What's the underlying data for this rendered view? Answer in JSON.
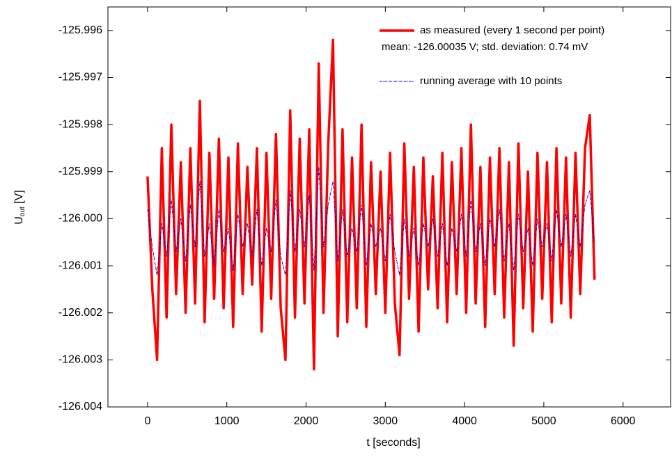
{
  "chart_data": {
    "type": "line",
    "xlabel": "t [seconds]",
    "ylabel": {
      "main": "U",
      "sub": "out",
      "unit": " [V]"
    },
    "annotation": "mean: -126.00035 V; std. deviation: 0.74 mV",
    "xlim": [
      -500,
      6600
    ],
    "ylim": [
      -126.004,
      -125.9955
    ],
    "xticks": [
      0,
      1000,
      2000,
      3000,
      4000,
      5000,
      6000
    ],
    "yticks": [
      -126.004,
      -126.003,
      -126.002,
      -126.001,
      {
        "value": -126.0,
        "label": "-126.000"
      },
      -125.999,
      -125.998,
      -125.997,
      -125.996
    ],
    "x": [
      0,
      60,
      120,
      180,
      240,
      300,
      360,
      420,
      480,
      540,
      600,
      660,
      720,
      780,
      840,
      900,
      960,
      1020,
      1080,
      1140,
      1200,
      1260,
      1320,
      1380,
      1440,
      1500,
      1560,
      1620,
      1680,
      1740,
      1800,
      1860,
      1920,
      1980,
      2040,
      2100,
      2160,
      2220,
      2280,
      2340,
      2400,
      2460,
      2520,
      2580,
      2640,
      2700,
      2760,
      2820,
      2880,
      2940,
      3000,
      3060,
      3120,
      3180,
      3240,
      3300,
      3360,
      3420,
      3480,
      3540,
      3600,
      3660,
      3720,
      3780,
      3840,
      3900,
      3960,
      4020,
      4080,
      4140,
      4200,
      4260,
      4320,
      4380,
      4440,
      4500,
      4560,
      4620,
      4680,
      4740,
      4800,
      4860,
      4920,
      4980,
      5040,
      5100,
      5160,
      5220,
      5280,
      5340,
      5400,
      5460,
      5520,
      5580,
      5640
    ],
    "series": [
      {
        "name": "as measured (every 1 second per point)",
        "color": "#ff0000",
        "values": [
          -125.9991,
          -126.0015,
          -126.003,
          -125.9985,
          -126.0021,
          -125.998,
          -126.0016,
          -125.9988,
          -126.002,
          -125.9985,
          -126.0018,
          -125.9975,
          -126.0022,
          -125.9986,
          -126.0017,
          -125.9983,
          -126.0019,
          -125.9987,
          -126.0023,
          -125.9984,
          -126.0016,
          -125.9989,
          -126.0014,
          -125.9985,
          -126.0024,
          -125.9986,
          -126.0017,
          -125.9982,
          -126.0019,
          -126.003,
          -125.9977,
          -126.0021,
          -125.9983,
          -126.0018,
          -125.9981,
          -126.0032,
          -125.9967,
          -126.002,
          -125.9984,
          -125.9962,
          -126.0025,
          -125.9981,
          -126.0022,
          -125.9987,
          -126.0019,
          -125.998,
          -126.0023,
          -125.9988,
          -126.0016,
          -125.999,
          -126.002,
          -125.9986,
          -126.0018,
          -126.0029,
          -125.9984,
          -126.0017,
          -125.9989,
          -126.0024,
          -125.9987,
          -126.0015,
          -125.9991,
          -126.0019,
          -125.9986,
          -126.0022,
          -125.9988,
          -126.0016,
          -125.9985,
          -126.002,
          -125.998,
          -126.0018,
          -125.9989,
          -126.0023,
          -125.9987,
          -126.0016,
          -125.9985,
          -126.0021,
          -125.9988,
          -126.0027,
          -125.9984,
          -126.0019,
          -125.999,
          -126.0024,
          -125.9986,
          -126.0017,
          -125.9988,
          -126.0022,
          -125.9985,
          -126.0018,
          -125.9987,
          -126.0021,
          -125.9986,
          -126.0016,
          -125.9985,
          -125.9978,
          -126.0013
        ]
      },
      {
        "name": "running average with 10 points",
        "color": "#0000cc",
        "values": [
          -125.9998,
          -126.0006,
          -126.0012,
          -126.0001,
          -126.0008,
          -125.9996,
          -126.0007,
          -126.0,
          -126.0009,
          -125.9997,
          -126.0006,
          -125.9992,
          -126.0008,
          -126.0001,
          -126.001,
          -125.9998,
          -126.0007,
          -126.0002,
          -126.0011,
          -125.9999,
          -126.0006,
          -126.0001,
          -126.0008,
          -125.9998,
          -126.001,
          -126.0002,
          -126.0007,
          -125.9996,
          -126.0008,
          -126.0012,
          -125.9994,
          -126.0007,
          -125.9998,
          -126.0006,
          -125.9995,
          -126.0011,
          -125.9989,
          -126.0006,
          -125.9997,
          -125.9992,
          -126.0009,
          -125.9998,
          -126.0008,
          -126.0002,
          -126.0007,
          -125.9997,
          -126.001,
          -126.0001,
          -126.0006,
          -126.0002,
          -126.0009,
          -125.9999,
          -126.0007,
          -126.0012,
          -126.0,
          -126.0008,
          -126.0002,
          -126.001,
          -126.0001,
          -126.0006,
          -126.0,
          -126.0008,
          -126.0001,
          -126.001,
          -126.0002,
          -126.0007,
          -125.9999,
          -126.0008,
          -125.9996,
          -126.0007,
          -126.0001,
          -126.001,
          -126.0,
          -126.0006,
          -125.9998,
          -126.0009,
          -126.0001,
          -126.0011,
          -125.9999,
          -126.0007,
          -126.0002,
          -126.001,
          -126.0,
          -126.0006,
          -126.0001,
          -126.0009,
          -125.9998,
          -126.0006,
          -125.9999,
          -126.0008,
          -125.9999,
          -126.0006,
          -125.9997,
          -125.9994,
          -126.0005
        ]
      }
    ]
  }
}
